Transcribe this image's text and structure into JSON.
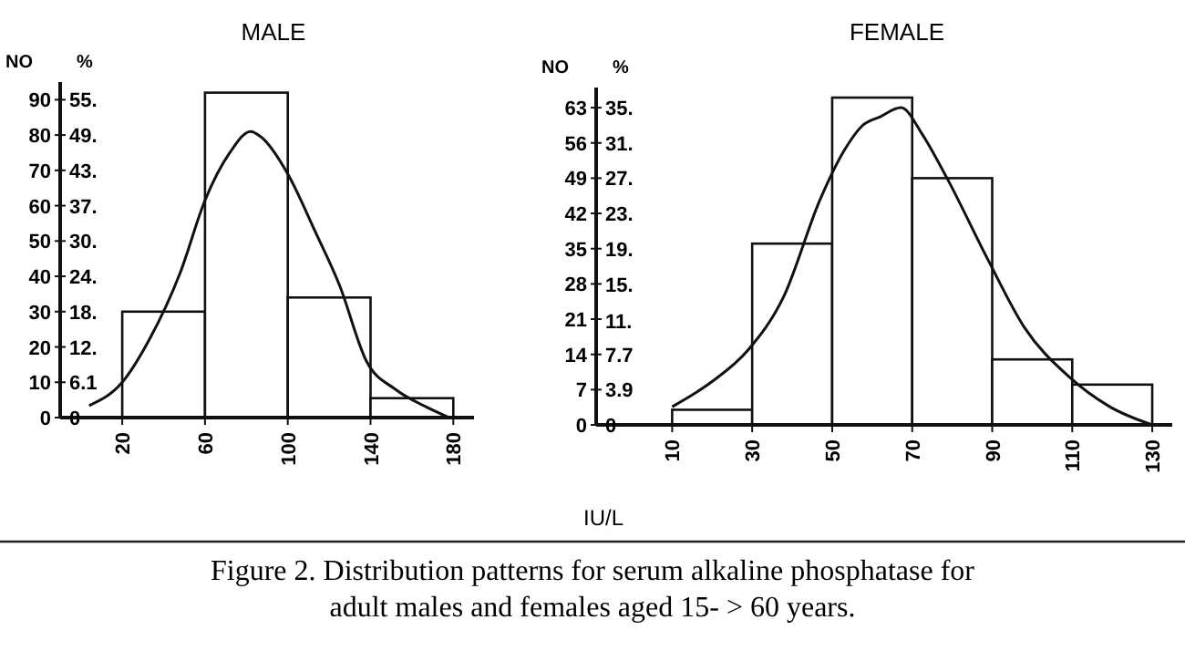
{
  "chart_data": [
    {
      "type": "histogram",
      "title": "MALE",
      "ylabel": "NO",
      "y2label": "%",
      "bins": [
        20,
        60,
        100,
        140,
        180
      ],
      "values": [
        30,
        92,
        34,
        5.5
      ],
      "series": [
        {
          "type": "line",
          "x": [
            4,
            20,
            33,
            48,
            60,
            72,
            82,
            87,
            100,
            113,
            125,
            138,
            152,
            167,
            178
          ],
          "values": [
            3.4,
            10,
            22,
            41,
            61.5,
            75,
            81,
            79.5,
            69,
            53,
            37.5,
            16,
            8,
            3,
            0
          ]
        }
      ],
      "xlim": [
        -10,
        190
      ],
      "xticks": [
        20,
        60,
        100,
        140,
        180
      ],
      "ylim": [
        0,
        95
      ],
      "yticks": [
        0,
        10,
        20,
        30,
        40,
        50,
        60,
        70,
        80,
        90
      ],
      "y2lim": [
        0,
        57.95
      ],
      "y2ticks": [
        0,
        6.1,
        {
          "value": 12.2,
          "label": "12."
        },
        {
          "value": 18.3,
          "label": "18."
        },
        {
          "value": 24.4,
          "label": "24."
        },
        {
          "value": 30.49,
          "label": "30."
        },
        {
          "value": 36.6,
          "label": "37."
        },
        {
          "value": 42.7,
          "label": "43."
        },
        {
          "value": 48.8,
          "label": "49."
        },
        {
          "value": 54.9,
          "label": "55."
        }
      ],
      "grid": false
    },
    {
      "type": "histogram",
      "title": "FEMALE",
      "ylabel": "NO",
      "y2label": "%",
      "xlabel": "IU/L",
      "bins": [
        10,
        30,
        50,
        70,
        90,
        110,
        130
      ],
      "values": [
        3,
        36,
        65,
        49,
        13,
        8
      ],
      "series": [
        {
          "type": "line",
          "x": [
            10,
            19.8,
            28.9,
            37.9,
            47,
            53,
            57.5,
            62,
            67.2,
            72.6,
            78.7,
            89,
            98,
            109,
            119.4,
            130
          ],
          "values": [
            3.6,
            8.5,
            14.8,
            25.5,
            44.8,
            54.5,
            59.4,
            61.2,
            63,
            57.6,
            49,
            32.7,
            19.4,
            9.7,
            3.6,
            0
          ]
        }
      ],
      "xlim": [
        -9,
        135
      ],
      "xticks": [
        10,
        30,
        50,
        70,
        90,
        110,
        130
      ],
      "ylim": [
        0,
        67
      ],
      "yticks": [
        0,
        7,
        14,
        21,
        28,
        35,
        42,
        49,
        56,
        63
      ],
      "y2lim": [
        0,
        37.22
      ],
      "y2ticks": [
        0,
        3.9,
        {
          "value": 7.74,
          "label": "7.7"
        },
        {
          "value": 11.49,
          "label": "11."
        },
        {
          "value": 15.49,
          "label": "15."
        },
        {
          "value": 19.44,
          "label": "19."
        },
        {
          "value": 23.33,
          "label": "23."
        },
        {
          "value": 27.22,
          "label": "27."
        },
        {
          "value": 31.11,
          "label": "31."
        },
        {
          "value": 35,
          "label": "35."
        }
      ],
      "grid": false,
      "annotations": [
        "Figure 2. Distribution patterns for serum alkaline phosphatase for adult males and females aged 15- > 60 years."
      ]
    }
  ]
}
